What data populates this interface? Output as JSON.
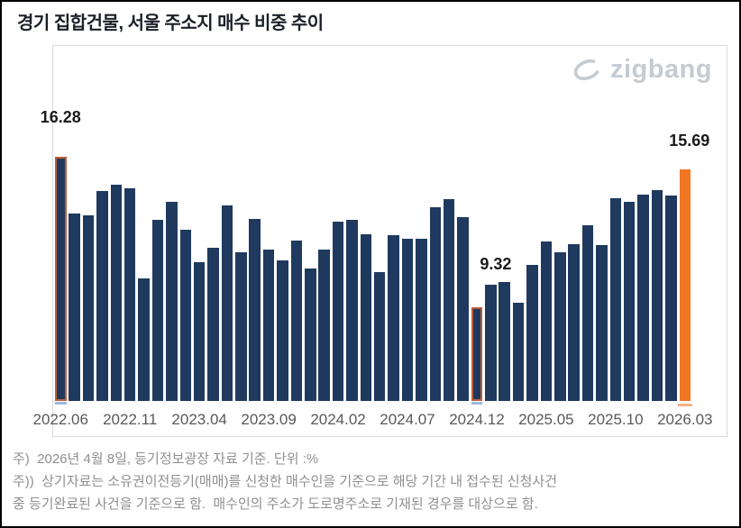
{
  "page": {
    "title": "경기 집합건물, 서울 주소지 매수 비중 추이",
    "logo_text": "zigbang"
  },
  "notes": {
    "line1": "주)  2026년 4월 8일, 등기정보광장 자료 기준. 단위 :%",
    "line2": "주))  상기자료는 소유권이전등기(매매)를 신청한 매수인을 기준으로 해당 기간 내 접수된 신청사건",
    "line3": "중 등기완료된 사건을 기준으로 함.  매수인의 주소가 도로명주소로 기재된 경우를 대상으로 함."
  },
  "colors": {
    "bar_navy": "#1f3a5e",
    "bar_orange": "#ef7622",
    "highlight_outline": "#be5e36",
    "outline_bottom_blue": "#9db8dd",
    "solid_bottom_light": "#f5b183",
    "chart_border": "#d9d9d9",
    "title_text": "#1b1f27",
    "axis_text": "#595959",
    "note_text": "#8f8f8f",
    "logo_gray": "#c5cbd1",
    "value_label_text": "#1a1a1a"
  },
  "chart_data": {
    "type": "bar",
    "title": "경기 집합건물, 서울 주소지 매수 비중 추이",
    "unit": "%",
    "categories": [
      "2022.06",
      "2022.07",
      "2022.08",
      "2022.09",
      "2022.10",
      "2022.11",
      "2022.12",
      "2023.01",
      "2023.02",
      "2023.03",
      "2023.04",
      "2023.05",
      "2023.06",
      "2023.07",
      "2023.08",
      "2023.09",
      "2023.10",
      "2023.11",
      "2023.12",
      "2024.01",
      "2024.02",
      "2024.03",
      "2024.04",
      "2024.05",
      "2024.06",
      "2024.07",
      "2024.08",
      "2024.09",
      "2024.10",
      "2024.11",
      "2024.12",
      "2025.01",
      "2025.02",
      "2025.03",
      "2025.04",
      "2025.05",
      "2025.06",
      "2025.07",
      "2025.08",
      "2025.09",
      "2025.10",
      "2025.11",
      "2025.12",
      "2026.01",
      "2026.02",
      "2026.03"
    ],
    "values": [
      16.28,
      13.67,
      13.59,
      14.71,
      15.01,
      14.84,
      10.67,
      13.38,
      14.21,
      12.92,
      11.42,
      12.09,
      14.05,
      11.88,
      13.42,
      12.0,
      11.5,
      12.42,
      11.13,
      12.0,
      13.3,
      13.38,
      12.71,
      10.96,
      12.67,
      12.5,
      12.5,
      13.96,
      14.34,
      13.51,
      9.32,
      10.38,
      10.5,
      9.54,
      11.3,
      12.38,
      11.88,
      12.25,
      13.13,
      12.21,
      14.38,
      14.21,
      14.55,
      14.76,
      14.51,
      15.69
    ],
    "x_tick_indices": [
      0,
      5,
      10,
      15,
      20,
      25,
      30,
      35,
      40,
      45
    ],
    "x_tick_labels": [
      "2022.06",
      "2022.11",
      "2023.04",
      "2023.09",
      "2024.02",
      "2024.07",
      "2024.12",
      "2025.05",
      "2025.10",
      "2026.03"
    ],
    "ylim": [
      5,
      17
    ],
    "grid": false,
    "legend": "none",
    "xlabel": "",
    "ylabel": "",
    "annotations": [
      {
        "index": 0,
        "label": "16.28"
      },
      {
        "index": 30,
        "label": "9.32"
      },
      {
        "index": 45,
        "label": "15.69"
      }
    ],
    "highlight": {
      "outlined_indices": [
        0,
        30
      ],
      "solid_index": 45
    }
  }
}
